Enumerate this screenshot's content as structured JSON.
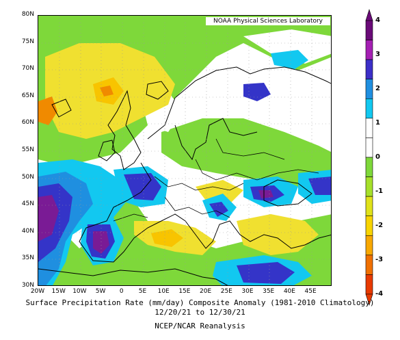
{
  "credit": "NOAA Physical Sciences Laboratory",
  "title_line1": "Surface Precipitation Rate (mm/day) Composite Anomaly (1981-2010 Climatology)",
  "title_line2": "12/20/21 to 12/30/21",
  "title_line3": "NCEP/NCAR Reanalysis",
  "latitude_labels": [
    "80N",
    "75N",
    "70N",
    "65N",
    "60N",
    "55N",
    "50N",
    "45N",
    "40N",
    "35N",
    "30N"
  ],
  "longitude_labels": [
    "20W",
    "15W",
    "10W",
    "5W",
    "0",
    "5E",
    "10E",
    "15E",
    "20E",
    "25E",
    "30E",
    "35E",
    "40E",
    "45E"
  ],
  "colorbar": {
    "labels": [
      "4",
      "3",
      "2",
      "1",
      "0",
      "-1",
      "-2",
      "-3",
      "-4"
    ],
    "colors": [
      "#6a0a78",
      "#a41fb3",
      "#3c2fc8",
      "#1f8fe0",
      "#12c8f0",
      "#ffffff",
      "#ffffff",
      "#7ed83a",
      "#a6e02a",
      "#e0e21a",
      "#f8d400",
      "#f8a800",
      "#f07000",
      "#e83a00"
    ]
  },
  "map_legend_colors": {
    "strong_wet": "#7a1b95",
    "wet": "#3434c8",
    "moderate_wet": "#1f8fe0",
    "slight_wet": "#12c8f0",
    "neutral": "#ffffff",
    "slight_dry": "#7ed83a",
    "dry": "#b8e02a",
    "moderate_dry": "#f0e030",
    "strong_dry": "#f8c400",
    "very_dry": "#f08a00"
  }
}
